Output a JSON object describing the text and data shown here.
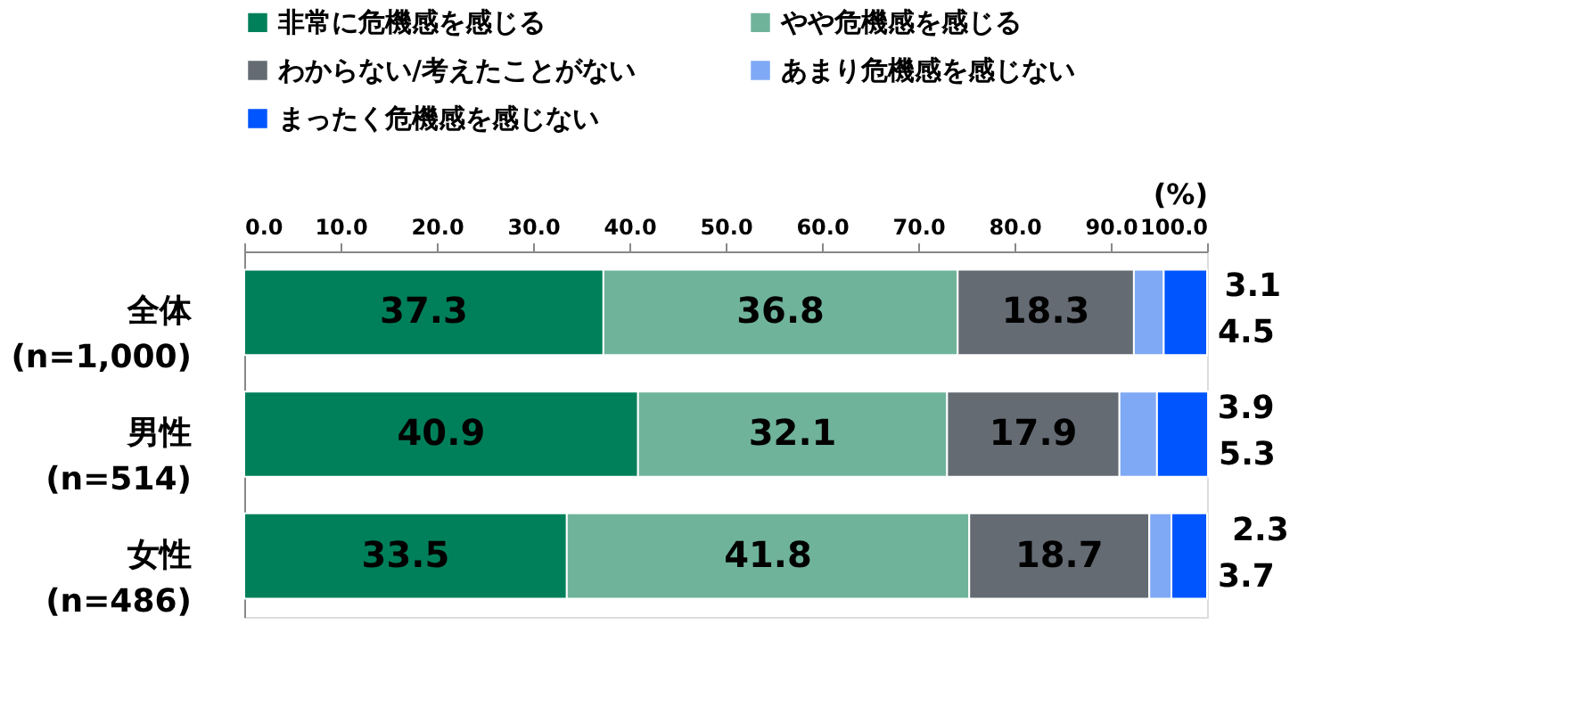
{
  "chart_data": {
    "type": "bar",
    "orientation": "horizontal",
    "stacked": true,
    "data_labels": true,
    "xlabel": "(%)",
    "categories": [
      "全体\n(n=1,000)",
      "男性\n(n=514)",
      "女性\n(n=486)"
    ],
    "series": [
      {
        "name": "非常に危機感を感じる",
        "color": "#00805a",
        "values": [
          37.3,
          40.9,
          33.5
        ]
      },
      {
        "name": "やや危機感を感じる",
        "color": "#6fb39b",
        "values": [
          36.8,
          32.1,
          41.8
        ]
      },
      {
        "name": "わからない/考えたことがない",
        "color": "#646b73",
        "values": [
          18.3,
          17.9,
          18.7
        ]
      },
      {
        "name": "あまり危機感を感じない",
        "color": "#7fa9f5",
        "values": [
          3.1,
          3.9,
          2.3
        ]
      },
      {
        "name": "まったく危機感を感じない",
        "color": "#0055ff",
        "values": [
          4.5,
          5.3,
          3.7
        ]
      }
    ],
    "xlim": [
      0,
      100
    ],
    "xticks": [
      {
        "value": 0,
        "label": "0.0"
      },
      {
        "value": 10,
        "label": "10.0"
      },
      {
        "value": 20,
        "label": "20.0"
      },
      {
        "value": 30,
        "label": "30.0"
      },
      {
        "value": 40,
        "label": "40.0"
      },
      {
        "value": 50,
        "label": "50.0"
      },
      {
        "value": 60,
        "label": "60.0"
      },
      {
        "value": 70,
        "label": "70.0"
      },
      {
        "value": 80,
        "label": "80.0"
      },
      {
        "value": 90,
        "label": "90.0"
      },
      {
        "value": 100,
        "label": "100.0"
      }
    ],
    "grid": false,
    "legend": "top"
  }
}
